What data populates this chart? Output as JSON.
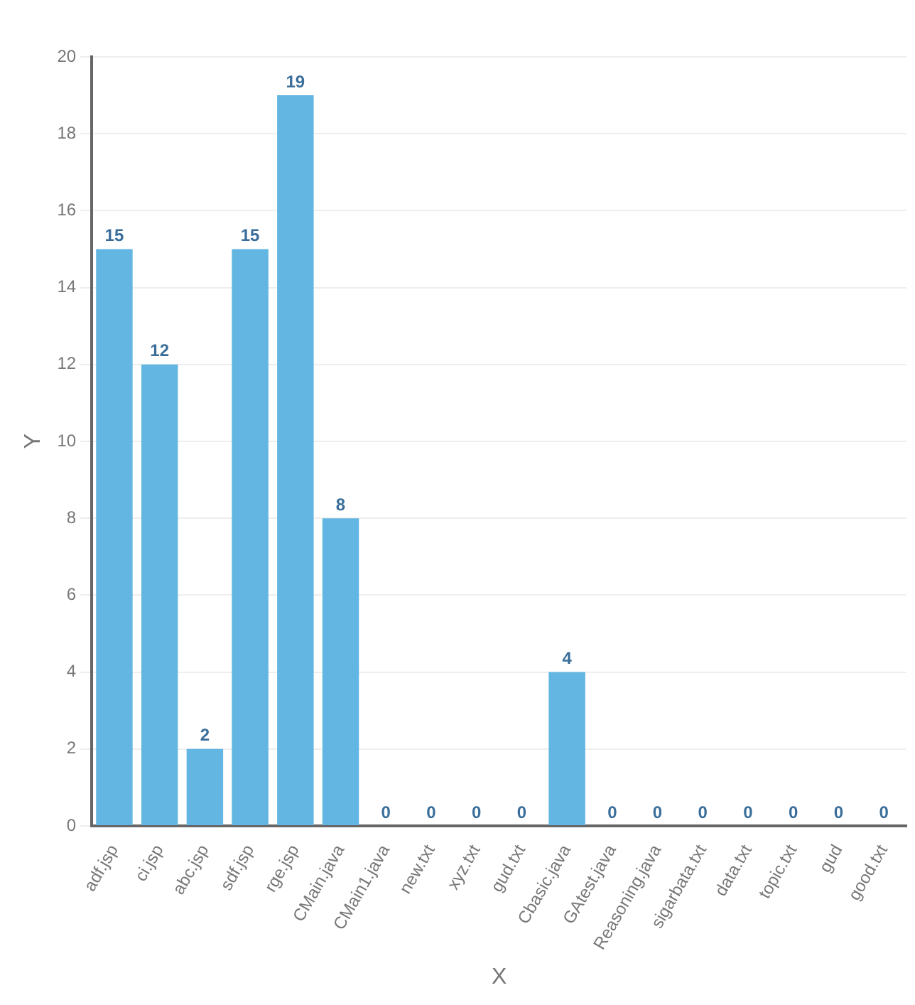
{
  "chart_data": {
    "type": "bar",
    "xlabel": "X",
    "ylabel": "Y",
    "categories": [
      "adf.jsp",
      "ci.jsp",
      "abc.jsp",
      "sdf.jsp",
      "rge.jsp",
      "CMain.java",
      "CMain1.java",
      "new.txt",
      "xyz.txt",
      "gud.txt",
      "Cbasic.java",
      "GAtest.java",
      "Reasoning.java",
      "sigarbata.txt",
      "data.txt",
      "topic.txt",
      "gud",
      "good.txt"
    ],
    "values": [
      15,
      12,
      2,
      15,
      19,
      8,
      0,
      0,
      0,
      0,
      4,
      0,
      0,
      0,
      0,
      0,
      0,
      0
    ],
    "color": "#62b6e1",
    "ylim": [
      0,
      20
    ],
    "yticks": [
      0,
      2,
      4,
      6,
      8,
      10,
      12,
      14,
      16,
      18,
      20
    ],
    "grid": "y",
    "data_labels": true
  }
}
